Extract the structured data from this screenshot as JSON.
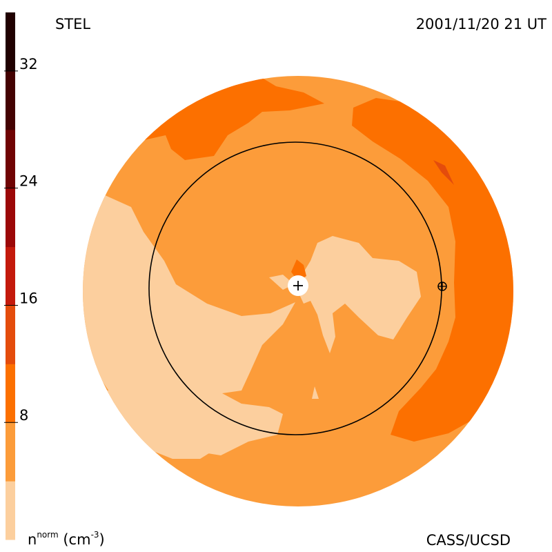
{
  "header": {
    "instrument": "STEL",
    "datetime": "2001/11/20 21 UT"
  },
  "footer": {
    "credit": "CASS/UCSD",
    "unit_base": "n",
    "unit_sup": "norm",
    "unit_paren_open": "(cm",
    "unit_exp": "-3",
    "unit_paren_close": ")"
  },
  "chart_data": {
    "type": "heatmap",
    "title": "",
    "colorbar": {
      "range": [
        0,
        36
      ],
      "step": 4,
      "tick_labels": [
        "8",
        "16",
        "24",
        "32"
      ],
      "tick_values": [
        8,
        16,
        24,
        32
      ],
      "levels": [
        {
          "min": 0,
          "max": 4,
          "color": "#fccf9e"
        },
        {
          "min": 4,
          "max": 8,
          "color": "#fc9c3a"
        },
        {
          "min": 8,
          "max": 12,
          "color": "#fc7000"
        },
        {
          "min": 12,
          "max": 16,
          "color": "#e44c0c"
        },
        {
          "min": 16,
          "max": 20,
          "color": "#c41a0c"
        },
        {
          "min": 20,
          "max": 24,
          "color": "#9c0808"
        },
        {
          "min": 24,
          "max": 28,
          "color": "#700404"
        },
        {
          "min": 28,
          "max": 32,
          "color": "#440202"
        },
        {
          "min": 32,
          "max": 36,
          "color": "#200000"
        }
      ]
    },
    "background_level_color": "#fc9c3a",
    "markers": [
      "sun-plus-marker",
      "earth-marker",
      "earth-orbit-circle"
    ]
  }
}
